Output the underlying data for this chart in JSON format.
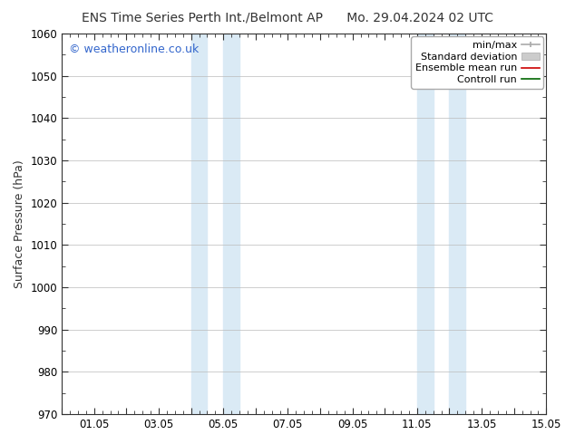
{
  "title_left": "ENS Time Series Perth Int./Belmont AP",
  "title_right": "Mo. 29.04.2024 02 UTC",
  "ylabel": "Surface Pressure (hPa)",
  "xlim": [
    0,
    15
  ],
  "ylim": [
    970,
    1060
  ],
  "yticks": [
    970,
    980,
    990,
    1000,
    1010,
    1020,
    1030,
    1040,
    1050,
    1060
  ],
  "xtick_labels": [
    "",
    "01.05",
    "",
    "03.05",
    "",
    "05.05",
    "",
    "07.05",
    "",
    "09.05",
    "",
    "11.05",
    "",
    "13.05",
    "",
    "15.05"
  ],
  "xtick_positions": [
    0,
    1,
    2,
    3,
    4,
    5,
    6,
    7,
    8,
    9,
    10,
    11,
    12,
    13,
    14,
    15
  ],
  "shaded_regions": [
    {
      "x_start": 4.0,
      "x_end": 4.5,
      "color": "#daeaf5"
    },
    {
      "x_start": 5.0,
      "x_end": 5.5,
      "color": "#daeaf5"
    },
    {
      "x_start": 11.0,
      "x_end": 11.5,
      "color": "#daeaf5"
    },
    {
      "x_start": 12.0,
      "x_end": 12.5,
      "color": "#daeaf5"
    }
  ],
  "background_color": "#ffffff",
  "grid_color": "#bbbbbb",
  "watermark_text": "© weatheronline.co.uk",
  "watermark_color": "#3366cc",
  "legend_entries": [
    {
      "label": "min/max",
      "color": "#aaaaaa",
      "style": "errorbar"
    },
    {
      "label": "Standard deviation",
      "color": "#cccccc",
      "style": "fill"
    },
    {
      "label": "Ensemble mean run",
      "color": "#ff0000",
      "style": "line"
    },
    {
      "label": "Controll run",
      "color": "#008000",
      "style": "line"
    }
  ],
  "title_fontsize": 10,
  "tick_fontsize": 8.5,
  "ylabel_fontsize": 9,
  "legend_fontsize": 8,
  "watermark_fontsize": 9
}
